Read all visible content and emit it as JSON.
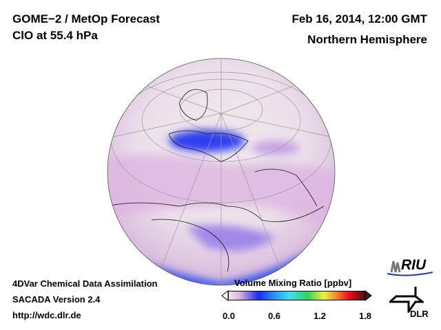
{
  "header": {
    "title": "GOME−2 / MetOp Forecast",
    "species": "ClO at 55.4 hPa",
    "datetime": "Feb 16, 2014, 12:00 GMT",
    "region": "Northern Hemisphere"
  },
  "footer": {
    "line1": "4DVar Chemical Data Assimilation",
    "line2": "SACADA Version 2.4",
    "url": "http://wdc.dlr.de"
  },
  "colorbar": {
    "title": "Volume Mixing Ratio [ppbv]",
    "ticks": [
      "0.0",
      "0.6",
      "1.2",
      "1.8"
    ],
    "min": 0.0,
    "max": 1.8
  },
  "logos": {
    "riu": "RIU",
    "dlr": "DLR"
  }
}
